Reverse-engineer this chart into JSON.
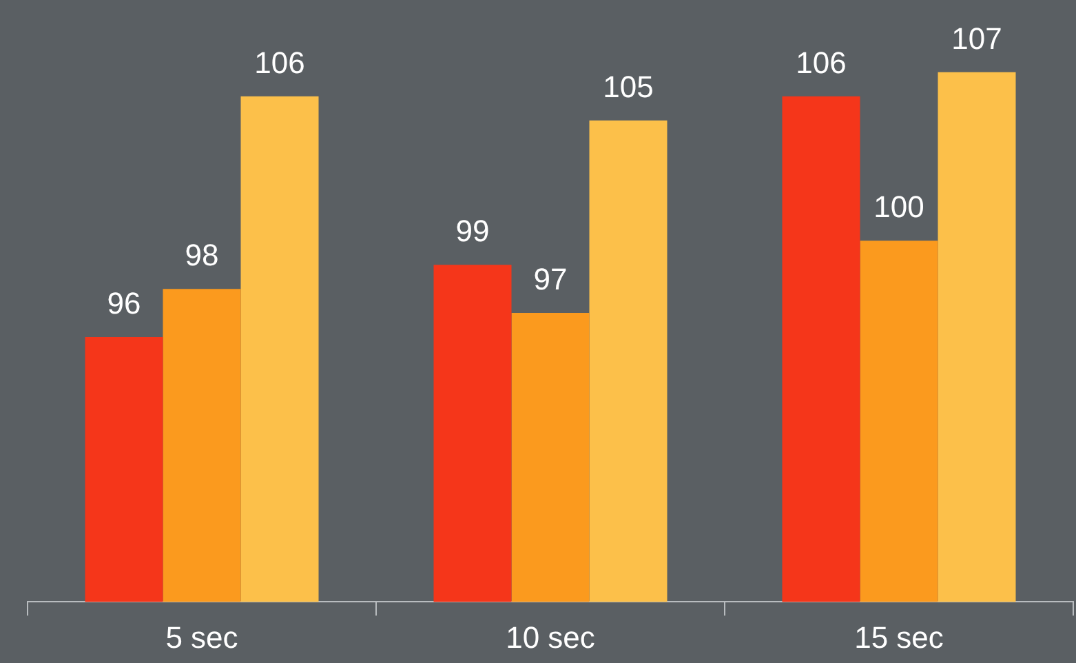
{
  "chart_data": {
    "type": "bar",
    "categories": [
      "5 sec",
      "10 sec",
      "15 sec"
    ],
    "series": [
      {
        "color": "#f5361a",
        "values": [
          96,
          99,
          106
        ]
      },
      {
        "color": "#fb9a1e",
        "values": [
          98,
          97,
          100
        ]
      },
      {
        "color": "#fcc04a",
        "values": [
          106,
          105,
          107
        ]
      }
    ],
    "ylim": [
      85,
      110
    ],
    "tick_labels": "x",
    "grid": false,
    "legend": false,
    "data_labels": true
  }
}
